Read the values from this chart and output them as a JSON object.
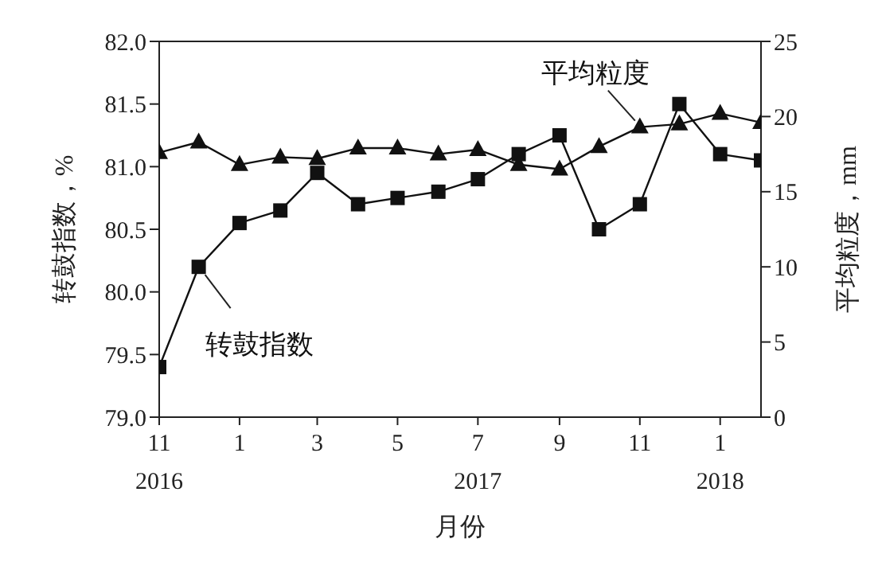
{
  "chart_data": {
    "type": "line",
    "xlabel": "月份",
    "ylabel": "转鼓指数，%",
    "y2label": "平均粒度，mm",
    "x": [
      "2016-11",
      "2016-12",
      "2017-01",
      "2017-02",
      "2017-03",
      "2017-04",
      "2017-05",
      "2017-06",
      "2017-07",
      "2017-08",
      "2017-09",
      "2017-10",
      "2017-11",
      "2017-12",
      "2018-01",
      "2018-02"
    ],
    "xlim": [
      "2016-11",
      "2018-02"
    ],
    "xticks": [
      {
        "value": "2016-11",
        "label": "11\n2016"
      },
      {
        "value": "2017-01",
        "label": "1"
      },
      {
        "value": "2017-03",
        "label": "3"
      },
      {
        "value": "2017-05",
        "label": "5"
      },
      {
        "value": "2017-07",
        "label": "7\n2017"
      },
      {
        "value": "2017-09",
        "label": "9"
      },
      {
        "value": "2017-11",
        "label": "11"
      },
      {
        "value": "2018-01",
        "label": "1\n2018"
      }
    ],
    "ylim": [
      79.0,
      82.0
    ],
    "yticks": [
      {
        "value": 79.0,
        "label": "79.0"
      },
      {
        "value": 79.5,
        "label": "79.5"
      },
      {
        "value": 80.0,
        "label": "80.0"
      },
      {
        "value": 80.5,
        "label": "80.5"
      },
      {
        "value": 81.0,
        "label": "81.0"
      },
      {
        "value": 81.5,
        "label": "81.5"
      },
      {
        "value": 82.0,
        "label": "82.0"
      }
    ],
    "y2lim": [
      0,
      25
    ],
    "y2ticks": [
      0,
      5,
      10,
      15,
      20,
      25
    ],
    "grid": false,
    "line_style": "solid",
    "series": [
      {
        "name": "转鼓指数",
        "color": "#111111",
        "marker": "square",
        "values": [
          79.4,
          80.2,
          80.55,
          80.65,
          80.95,
          80.7,
          80.75,
          80.8,
          80.9,
          81.1,
          81.25,
          80.5,
          80.7,
          81.5,
          81.1,
          81.05
        ]
      },
      {
        "name": "平均粒度",
        "color": "#111111",
        "marker": "triangle",
        "axis": "y2",
        "values": [
          17.6,
          18.3,
          16.8,
          17.3,
          17.2,
          17.9,
          17.9,
          17.5,
          17.8,
          16.8,
          16.5,
          18.0,
          19.3,
          19.5,
          20.2,
          19.6
        ]
      }
    ]
  }
}
